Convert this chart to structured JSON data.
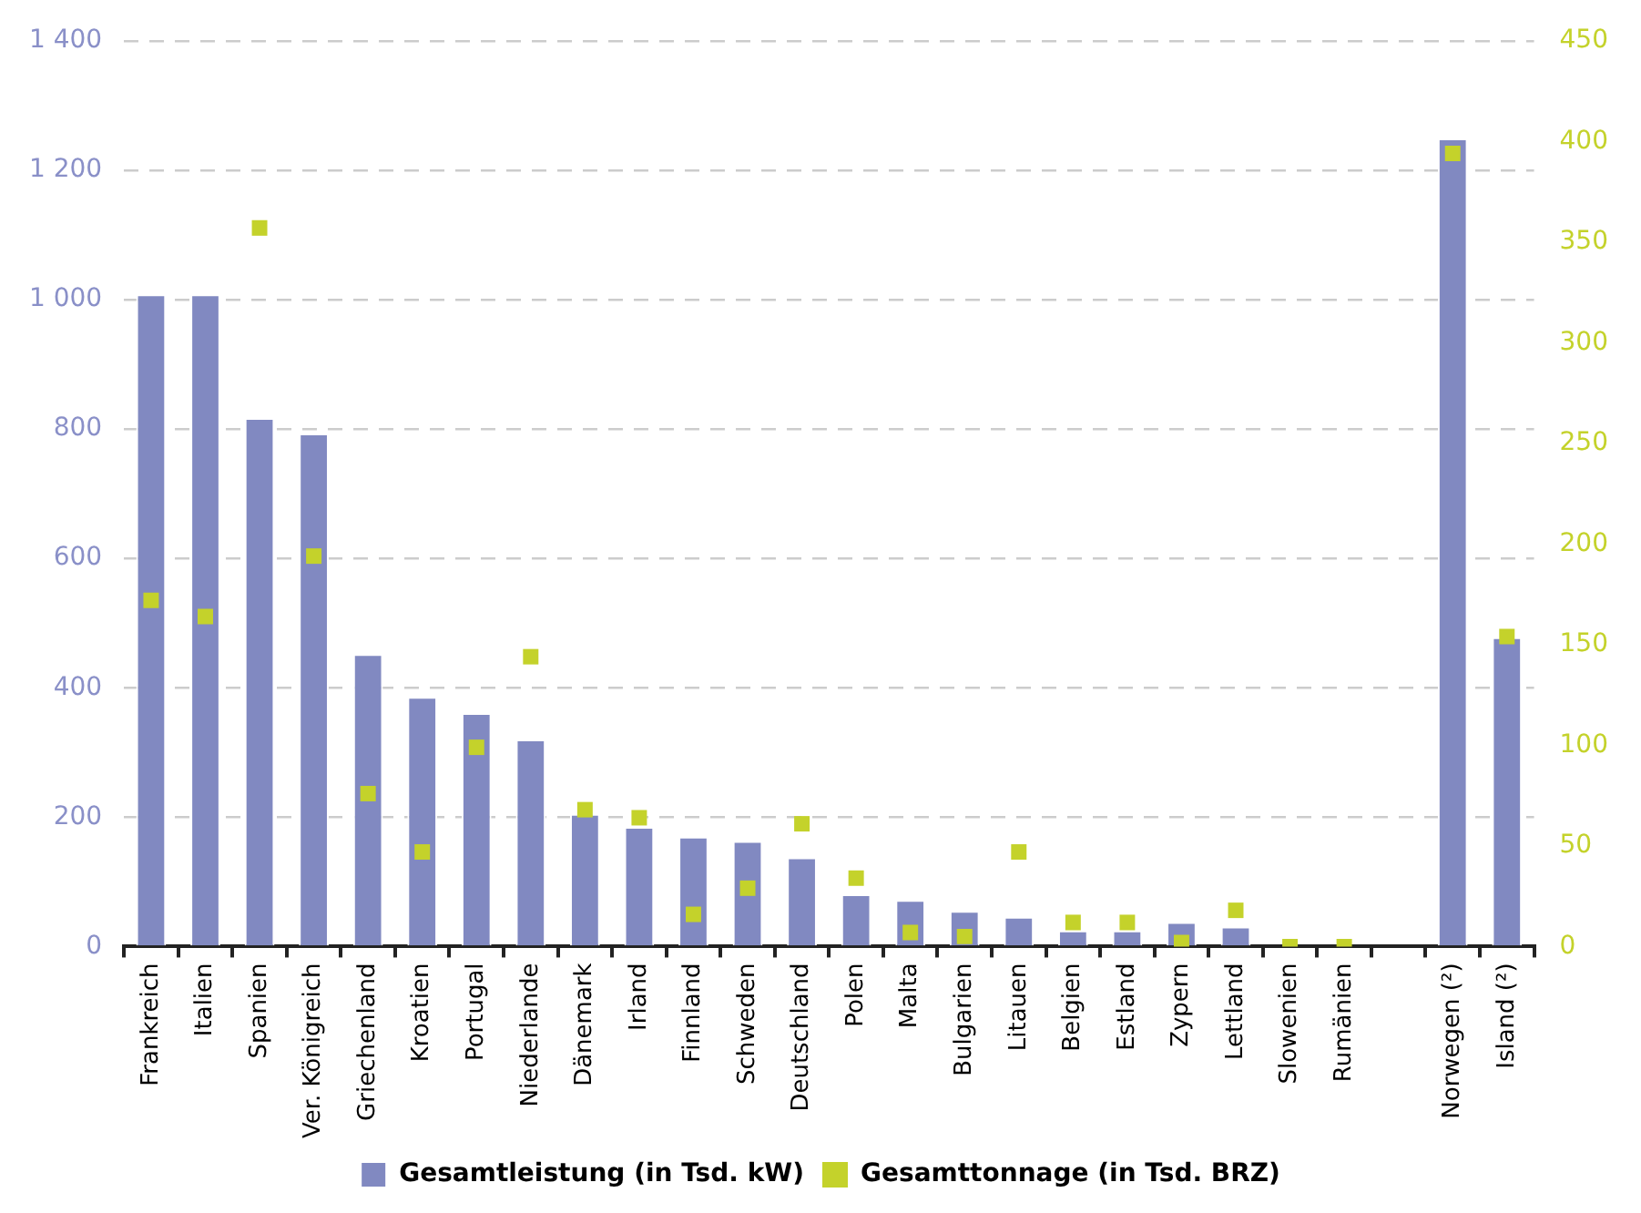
{
  "chart_data": {
    "type": "bar",
    "categories": [
      "Frankreich",
      "Italien",
      "Spanien",
      "Ver. Königreich",
      "Griechenland",
      "Kroatien",
      "Portugal",
      "Niederlande",
      "Dänemark",
      "Irland",
      "Finnland",
      "Schweden",
      "Deutschland",
      "Polen",
      "Malta",
      "Bulgarien",
      "Litauen",
      "Belgien",
      "Estland",
      "Zypern",
      "Lettland",
      "Slowenien",
      "Rumänien",
      null,
      "Norwegen (²)",
      "Island (²)"
    ],
    "series": [
      {
        "name": "Gesamtleistung (in Tsd. kW)",
        "color": "#8189c1",
        "values": [
          1008,
          1008,
          817,
          793,
          452,
          386,
          361,
          320,
          205,
          185,
          170,
          163,
          138,
          81,
          72,
          55,
          46,
          25,
          25,
          38,
          31,
          0,
          0,
          null,
          1249,
          478
        ]
      },
      {
        "name": "Gesamttonnage (in Tsd. BRZ)",
        "type": "scatter",
        "axis": "y2",
        "color": "#c4d22b",
        "values": [
          172,
          164,
          357,
          194,
          76,
          47,
          99,
          144,
          68,
          64,
          16,
          29,
          61,
          34,
          7,
          5,
          47,
          12,
          12,
          2,
          18,
          0,
          0,
          null,
          394,
          154
        ]
      }
    ],
    "ylim": [
      0,
      1400
    ],
    "yticks": [
      0,
      200,
      400,
      600,
      800,
      1000,
      1200,
      {
        "value": 1400,
        "label": "1 400"
      }
    ],
    "y2lim": [
      0,
      450
    ],
    "y2ticks": [
      0,
      50,
      100,
      150,
      200,
      250,
      300,
      350,
      400,
      450
    ],
    "grid": "y",
    "legend": "bottom"
  }
}
